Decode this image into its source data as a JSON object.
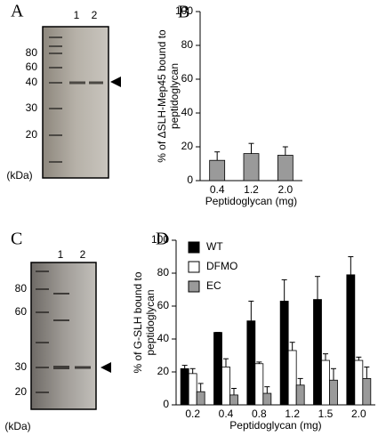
{
  "panels": [
    {
      "label": "A",
      "lanes": [
        "1",
        "2"
      ],
      "markers": [
        80,
        60,
        40,
        30,
        20
      ],
      "unit": "(kDa)"
    },
    {
      "label": "C",
      "lanes": [
        "1",
        "2"
      ],
      "markers": [
        80,
        60,
        30,
        20
      ],
      "unit": "(kDa)"
    }
  ],
  "chart_data": [
    {
      "type": "bar",
      "panel_label": "B",
      "ylabel": [
        "% of ΔSLH-Mep45 bound to",
        "peptidoglycan"
      ],
      "xlabel": "Peptidoglycan (mg)",
      "categories": [
        "0.4",
        "1.2",
        "2.0"
      ],
      "series": [
        {
          "color": "#9a9a9a",
          "values": [
            12,
            16,
            15
          ],
          "errors": [
            5,
            6,
            5
          ]
        }
      ],
      "ylim": [
        0,
        100
      ],
      "yticks": [
        0,
        20,
        40,
        60,
        80,
        100
      ]
    },
    {
      "type": "bar",
      "panel_label": "D",
      "ylabel": [
        "% of G-SLH bound to",
        "peptidoglycan"
      ],
      "xlabel": "Peptidoglycan (mg)",
      "categories": [
        "0.2",
        "0.4",
        "0.8",
        "1.2",
        "1.5",
        "2.0"
      ],
      "series": [
        {
          "name": "WT",
          "color": "#000000",
          "values": [
            22,
            44,
            51,
            63,
            64,
            79
          ],
          "errors": [
            2,
            0,
            12,
            13,
            14,
            11
          ]
        },
        {
          "name": "DFMO",
          "color": "#ffffff",
          "values": [
            19,
            23,
            25,
            33,
            27,
            27
          ],
          "errors": [
            3,
            5,
            1,
            5,
            4,
            2
          ]
        },
        {
          "name": "EC",
          "color": "#9a9a9a",
          "values": [
            8,
            6,
            7,
            12,
            15,
            16
          ],
          "errors": [
            5,
            4,
            4,
            4,
            7,
            7
          ]
        }
      ],
      "ylim": [
        0,
        100
      ],
      "yticks": [
        0,
        20,
        40,
        60,
        80,
        100
      ],
      "legend": "top-left"
    }
  ]
}
